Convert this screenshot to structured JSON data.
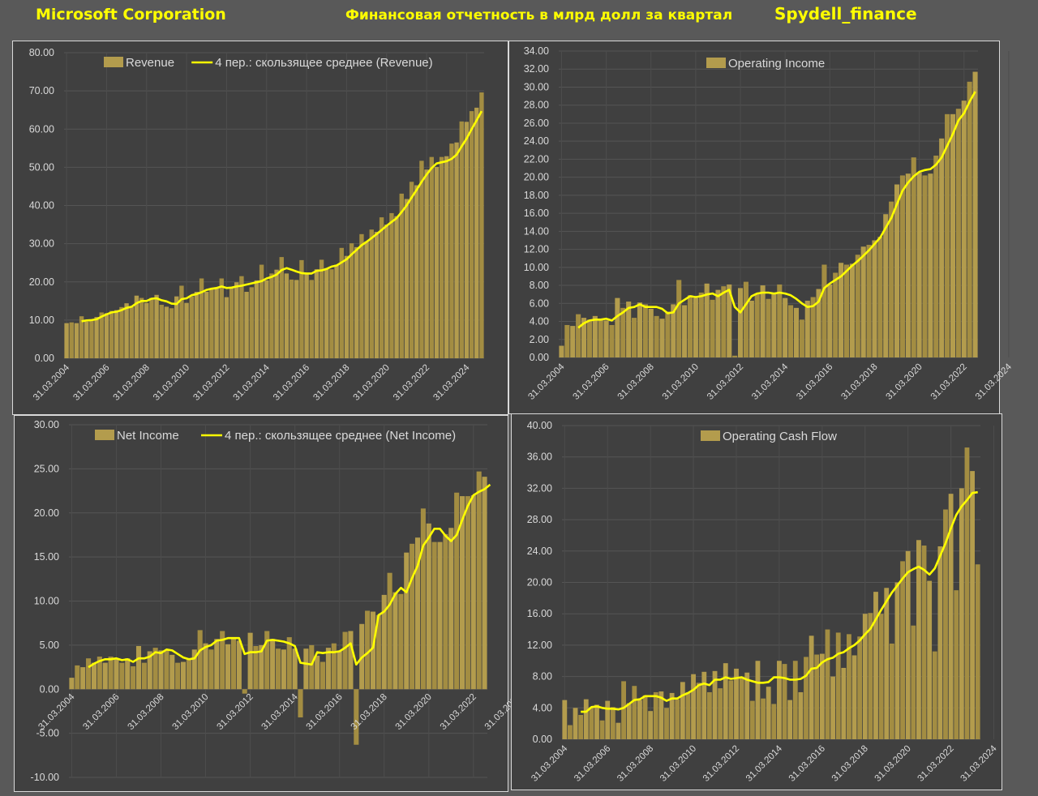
{
  "header": {
    "company": "Microsoft Corporation",
    "subtitle": "Финансовая отчетность в млрд долл за квартал",
    "brand": "Spydell_finance"
  },
  "colors": {
    "page_background": "#595959",
    "plot_background": "#404040",
    "bar": "#b39c4d",
    "moving_average": "#ffff00",
    "header_text": "#ffff00",
    "axis_text": "#d9d9d9"
  },
  "chart_data": [
    {
      "id": "revenue",
      "type": "bar",
      "legend": [
        "Revenue",
        "4 пер.: скользящее среднее (Revenue)"
      ],
      "x_tick_labels": [
        "31.03.2004",
        "31.03.2006",
        "31.03.2008",
        "31.03.2010",
        "31.03.2012",
        "31.03.2014",
        "31.03.2016",
        "31.03.2018",
        "31.03.2020",
        "31.03.2022",
        "31.03.2024"
      ],
      "y_tick_labels": [
        "0.00",
        "10.00",
        "20.00",
        "30.00",
        "40.00",
        "50.00",
        "60.00",
        "70.00",
        "80.00"
      ],
      "ylim": [
        0,
        80
      ],
      "grid": true,
      "legend_position": "top",
      "x_start": "2004-03-31",
      "frequency": "quarterly",
      "series": [
        {
          "name": "Revenue",
          "kind": "bar",
          "values": [
            9.2,
            9.4,
            9.2,
            11.0,
            9.6,
            10.2,
            10.8,
            12.0,
            11.8,
            12.4,
            12.6,
            13.4,
            14.4,
            13.4,
            16.4,
            15.8,
            14.5,
            15.8,
            16.6,
            14.0,
            13.5,
            13.1,
            16.2,
            19.0,
            14.5,
            16.2,
            17.4,
            20.9,
            17.4,
            18.1,
            18.6,
            20.9,
            16.0,
            18.5,
            19.9,
            21.5,
            17.4,
            18.6,
            20.4,
            24.5,
            20.4,
            22.2,
            23.2,
            26.5,
            22.2,
            20.6,
            20.5,
            25.7,
            22.1,
            20.5,
            23.3,
            25.8,
            23.6,
            23.3,
            24.5,
            28.9,
            26.8,
            30.1,
            29.1,
            32.5,
            30.6,
            33.7,
            33.1,
            36.9,
            35.0,
            38.0,
            37.2,
            43.1,
            41.7,
            46.2,
            45.3,
            51.7,
            49.4,
            52.7,
            50.1,
            52.7,
            52.9,
            56.2,
            56.5,
            62.0,
            61.9,
            64.7,
            65.6,
            69.6
          ]
        },
        {
          "name": "4 пер.: скользящее среднее (Revenue)",
          "kind": "line",
          "values": [
            null,
            null,
            null,
            9.7,
            9.9,
            10.0,
            10.2,
            10.9,
            11.5,
            12.0,
            12.2,
            12.6,
            13.2,
            13.5,
            14.4,
            15.0,
            15.0,
            15.6,
            15.7,
            15.2,
            14.9,
            14.3,
            14.2,
            15.5,
            15.7,
            16.5,
            16.8,
            17.3,
            17.9,
            18.2,
            18.4,
            18.8,
            18.4,
            18.5,
            18.8,
            19.0,
            19.3,
            19.6,
            19.9,
            20.2,
            20.9,
            21.3,
            21.9,
            23.1,
            23.6,
            23.2,
            22.7,
            22.3,
            22.2,
            22.2,
            22.9,
            23.0,
            23.4,
            24.0,
            24.3,
            25.1,
            25.9,
            27.2,
            28.4,
            29.6,
            30.5,
            31.5,
            32.5,
            33.6,
            34.7,
            35.7,
            36.7,
            38.3,
            40.0,
            42.1,
            44.1,
            46.2,
            48.1,
            49.8,
            51.0,
            51.3,
            51.6,
            52.2,
            53.3,
            55.5,
            57.5,
            60.0,
            62.3,
            64.7
          ]
        }
      ]
    },
    {
      "id": "operating_income",
      "type": "bar",
      "legend": [
        "Operating Income"
      ],
      "x_tick_labels": [
        "31.03.2004",
        "31.03.2006",
        "31.03.2008",
        "31.03.2010",
        "31.03.2012",
        "31.03.2014",
        "31.03.2016",
        "31.03.2018",
        "31.03.2020",
        "31.03.2022",
        "31.03.2024"
      ],
      "y_tick_labels": [
        "0.00",
        "2.00",
        "4.00",
        "6.00",
        "8.00",
        "10.00",
        "12.00",
        "14.00",
        "16.00",
        "18.00",
        "20.00",
        "22.00",
        "24.00",
        "26.00",
        "28.00",
        "30.00",
        "32.00",
        "34.00"
      ],
      "ylim": [
        0,
        34
      ],
      "grid": true,
      "legend_position": "top",
      "x_start": "2004-03-31",
      "frequency": "quarterly",
      "series": [
        {
          "name": "Operating Income",
          "kind": "bar",
          "values": [
            1.3,
            3.6,
            3.5,
            4.8,
            4.4,
            4.2,
            4.6,
            4.2,
            4.1,
            3.6,
            6.6,
            5.5,
            6.2,
            4.4,
            6.1,
            5.9,
            5.4,
            4.6,
            4.3,
            5.1,
            5.9,
            8.6,
            5.8,
            6.9,
            6.6,
            7.2,
            8.2,
            6.4,
            7.5,
            7.9,
            8.1,
            0.2,
            7.7,
            8.4,
            6.3,
            7.1,
            8.0,
            6.5,
            7.1,
            8.1,
            6.6,
            5.8,
            5.5,
            4.2,
            6.3,
            6.7,
            7.6,
            10.3,
            8.1,
            9.4,
            10.5,
            10.3,
            10.4,
            11.4,
            12.3,
            12.5,
            13.0,
            13.4,
            15.9,
            17.3,
            19.2,
            20.2,
            20.4,
            22.2,
            20.5,
            20.2,
            20.4,
            22.4,
            24.3,
            27.0,
            27.0,
            27.6,
            28.5,
            30.6,
            31.7
          ]
        },
        {
          "name": "",
          "kind": "line",
          "values": [
            null,
            null,
            null,
            3.3,
            3.8,
            4.1,
            4.2,
            4.2,
            4.3,
            4.1,
            4.6,
            5.0,
            5.5,
            5.6,
            5.9,
            5.6,
            5.6,
            5.6,
            5.4,
            4.9,
            5.0,
            6.0,
            6.4,
            6.8,
            6.7,
            6.8,
            7.0,
            7.1,
            6.8,
            7.2,
            7.5,
            5.6,
            5.0,
            5.9,
            6.8,
            7.1,
            7.2,
            7.2,
            7.1,
            7.2,
            7.1,
            6.9,
            6.5,
            6.0,
            5.6,
            5.7,
            6.2,
            7.7,
            8.2,
            8.6,
            9.0,
            9.6,
            10.2,
            10.7,
            11.3,
            11.9,
            12.6,
            13.3,
            14.4,
            15.5,
            17.0,
            18.5,
            19.4,
            20.1,
            20.6,
            20.8,
            20.9,
            21.4,
            22.2,
            23.5,
            24.8,
            26.3,
            27.1,
            28.4,
            29.5
          ]
        }
      ]
    },
    {
      "id": "net_income",
      "type": "bar",
      "legend": [
        "Net Income",
        "4 пер.: скользящее среднее (Net Income)"
      ],
      "x_tick_labels": [
        "31.03.2004",
        "31.03.2006",
        "31.03.2008",
        "31.03.2010",
        "31.03.2012",
        "31.03.2014",
        "31.03.2016",
        "31.03.2018",
        "31.03.2020",
        "31.03.2022",
        "31.03.2024"
      ],
      "y_tick_labels": [
        "-10.00",
        "-5.00",
        "0.00",
        "5.00",
        "10.00",
        "15.00",
        "20.00",
        "25.00",
        "30.00"
      ],
      "ylim": [
        -10,
        30
      ],
      "grid": true,
      "legend_position": "top",
      "x_start": "2004-03-31",
      "frequency": "quarterly",
      "series": [
        {
          "name": "Net Income",
          "kind": "bar",
          "values": [
            1.3,
            2.7,
            2.5,
            3.5,
            3.0,
            3.7,
            3.0,
            3.7,
            3.4,
            3.0,
            3.5,
            2.6,
            4.9,
            3.0,
            4.3,
            4.7,
            4.4,
            4.4,
            3.9,
            3.0,
            3.1,
            3.5,
            4.5,
            6.7,
            5.2,
            4.5,
            5.7,
            6.6,
            5.1,
            5.9,
            5.5,
            -0.5,
            6.4,
            4.9,
            5.0,
            6.6,
            5.7,
            4.6,
            4.5,
            5.9,
            4.6,
            -3.2,
            4.6,
            5.0,
            3.8,
            3.1,
            4.7,
            5.2,
            4.4,
            6.5,
            6.6,
            -6.3,
            7.4,
            8.9,
            8.8,
            8.4,
            10.7,
            13.2,
            11.0,
            10.8,
            15.5,
            16.5,
            17.2,
            20.5,
            18.8,
            16.7,
            16.7,
            17.6,
            18.3,
            22.3,
            21.9,
            21.9,
            22.0,
            24.7,
            24.1
          ]
        },
        {
          "name": "4 пер.: скользящее среднее (Net Income)",
          "kind": "line",
          "values": [
            null,
            null,
            null,
            2.5,
            2.9,
            3.2,
            3.4,
            3.4,
            3.5,
            3.3,
            3.4,
            3.1,
            3.5,
            3.5,
            3.7,
            4.2,
            4.1,
            4.5,
            4.4,
            4.0,
            3.6,
            3.4,
            3.5,
            4.4,
            4.8,
            5.0,
            5.5,
            5.6,
            5.8,
            5.8,
            5.8,
            4.0,
            4.2,
            4.2,
            4.3,
            5.5,
            5.6,
            5.5,
            5.4,
            5.2,
            4.9,
            3.0,
            2.9,
            2.8,
            4.2,
            4.1,
            4.2,
            4.2,
            4.3,
            4.7,
            5.2,
            2.8,
            3.6,
            4.1,
            4.7,
            8.4,
            8.8,
            9.6,
            10.8,
            11.5,
            11.0,
            12.6,
            14.0,
            16.3,
            17.2,
            18.2,
            18.2,
            17.4,
            16.8,
            17.5,
            19.2,
            20.8,
            22.0,
            22.4,
            22.7,
            23.2
          ]
        }
      ]
    },
    {
      "id": "operating_cash_flow",
      "type": "bar",
      "legend": [
        "Operating Cash Flow"
      ],
      "x_tick_labels": [
        "31.03.2004",
        "31.03.2006",
        "31.03.2008",
        "31.03.2010",
        "31.03.2012",
        "31.03.2014",
        "31.03.2016",
        "31.03.2018",
        "31.03.2020",
        "31.03.2022",
        "31.03.2024"
      ],
      "y_tick_labels": [
        "0.00",
        "4.00",
        "8.00",
        "12.00",
        "16.00",
        "20.00",
        "24.00",
        "28.00",
        "32.00",
        "36.00",
        "40.00"
      ],
      "ylim": [
        0,
        40
      ],
      "grid": true,
      "legend_position": "top",
      "x_start": "2004-03-31",
      "frequency": "quarterly",
      "series": [
        {
          "name": "Operating Cash Flow",
          "kind": "bar",
          "values": [
            5.0,
            1.8,
            4.0,
            3.1,
            5.1,
            4.1,
            4.4,
            2.4,
            4.9,
            4.1,
            2.1,
            7.4,
            4.6,
            6.8,
            5.0,
            5.6,
            3.6,
            6.0,
            6.1,
            4.0,
            5.9,
            5.1,
            7.3,
            6.0,
            8.3,
            7.2,
            8.6,
            6.0,
            8.7,
            6.5,
            9.7,
            7.5,
            9.0,
            7.9,
            8.5,
            4.9,
            10.0,
            5.2,
            6.7,
            4.5,
            10.0,
            9.6,
            5.0,
            10.0,
            6.0,
            10.5,
            13.2,
            10.8,
            10.9,
            14.0,
            8.0,
            13.6,
            9.1,
            13.4,
            10.7,
            13.1,
            16.0,
            16.1,
            18.8,
            16.0,
            19.3,
            12.2,
            20.0,
            22.7,
            24.0,
            14.5,
            25.4,
            24.7,
            20.2,
            11.2,
            24.6,
            29.3,
            31.3,
            19.0,
            32.0,
            37.2,
            34.2,
            22.3
          ]
        },
        {
          "name": "",
          "kind": "line",
          "values": [
            null,
            null,
            null,
            3.5,
            3.5,
            4.1,
            4.2,
            4.0,
            3.9,
            3.9,
            3.8,
            4.0,
            4.5,
            5.0,
            5.1,
            5.5,
            5.5,
            5.5,
            5.3,
            4.9,
            5.2,
            5.2,
            5.6,
            5.9,
            6.3,
            6.9,
            7.1,
            6.9,
            7.6,
            7.6,
            7.9,
            7.7,
            7.8,
            7.9,
            7.6,
            7.4,
            7.2,
            7.2,
            7.3,
            7.9,
            7.9,
            7.8,
            7.6,
            7.6,
            7.7,
            8.1,
            9.0,
            9.1,
            9.8,
            10.2,
            10.4,
            10.9,
            11.1,
            11.6,
            12.0,
            12.6,
            13.4,
            14.1,
            15.3,
            16.5,
            17.6,
            18.7,
            19.6,
            20.5,
            21.3,
            21.7,
            22.0,
            21.6,
            21.0,
            21.8,
            23.4,
            25.0,
            26.9,
            28.6,
            29.7,
            30.5,
            31.4,
            31.5
          ]
        }
      ]
    }
  ]
}
